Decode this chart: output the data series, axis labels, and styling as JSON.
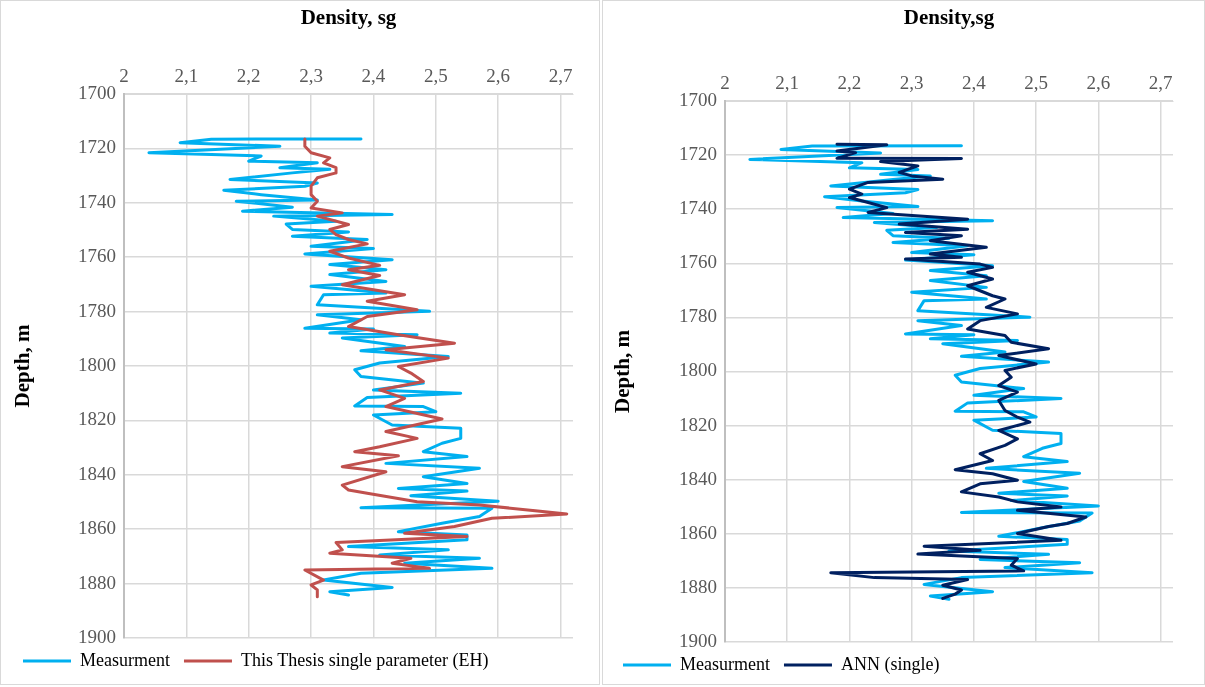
{
  "chart_data": [
    {
      "type": "line",
      "xlabel": "Density, sg",
      "ylabel": "Depth, m",
      "xlim": [
        2,
        2.72
      ],
      "ylim": [
        1900,
        1700
      ],
      "xticks": [
        {
          "value": 2,
          "label": "2"
        },
        {
          "value": 2.1,
          "label": "2,1"
        },
        {
          "value": 2.2,
          "label": "2,2"
        },
        {
          "value": 2.3,
          "label": "2,3"
        },
        {
          "value": 2.4,
          "label": "2,4"
        },
        {
          "value": 2.5,
          "label": "2,5"
        },
        {
          "value": 2.6,
          "label": "2,6"
        },
        {
          "value": 2.7,
          "label": "2,7"
        }
      ],
      "yticks": [
        1700,
        1720,
        1740,
        1760,
        1780,
        1800,
        1820,
        1840,
        1860,
        1880,
        1900
      ],
      "grid": true,
      "legend": "bottom",
      "marker": "none",
      "line_style": "solid",
      "series": [
        {
          "name": "Measurment",
          "color": "#00b0f0",
          "x": [
            2.38,
            2.14,
            2.09,
            2.25,
            2.04,
            2.22,
            2.2,
            2.31,
            2.25,
            2.33,
            2.27,
            2.17,
            2.31,
            2.29,
            2.16,
            2.22,
            2.31,
            2.18,
            2.27,
            2.19,
            2.43,
            2.24,
            2.34,
            2.26,
            2.27,
            2.36,
            2.27,
            2.39,
            2.3,
            2.4,
            2.29,
            2.43,
            2.33,
            2.42,
            2.33,
            2.42,
            2.3,
            2.42,
            2.32,
            2.31,
            2.49,
            2.31,
            2.38,
            2.29,
            2.4,
            2.33,
            2.47,
            2.35,
            2.45,
            2.38,
            2.52,
            2.41,
            2.37,
            2.38,
            2.48,
            2.4,
            2.54,
            2.39,
            2.37,
            2.48,
            2.5,
            2.4,
            2.43,
            2.54,
            2.54,
            2.51,
            2.48,
            2.55,
            2.42,
            2.57,
            2.48,
            2.55,
            2.44,
            2.55,
            2.46,
            2.6,
            2.38,
            2.59,
            2.57,
            2.51,
            2.44,
            2.55,
            2.55,
            2.36,
            2.52,
            2.41,
            2.57,
            2.45,
            2.59,
            2.38,
            2.32,
            2.43,
            2.33,
            2.36
          ],
          "values": [
            1716.5,
            1716.6,
            1717.9,
            1719.2,
            1721.6,
            1722.8,
            1724.7,
            1725.3,
            1727.1,
            1727.7,
            1729,
            1731.4,
            1732.7,
            1733.9,
            1735.4,
            1737,
            1739,
            1739.4,
            1741.6,
            1743.1,
            1744.3,
            1744.9,
            1746.8,
            1747.8,
            1749.8,
            1750.7,
            1752.3,
            1753.5,
            1756,
            1756.8,
            1758.8,
            1760.9,
            1762.7,
            1764.6,
            1766.4,
            1768.9,
            1770.7,
            1773.2,
            1773.8,
            1777.5,
            1779.9,
            1781.2,
            1783,
            1786.1,
            1786.4,
            1787.9,
            1788.5,
            1789.7,
            1792.8,
            1794.4,
            1796.5,
            1798.9,
            1801.4,
            1803.9,
            1806.3,
            1808.8,
            1810,
            1811.6,
            1814.7,
            1814.9,
            1816.8,
            1818,
            1821.7,
            1822.9,
            1826.6,
            1828.4,
            1831.5,
            1833.3,
            1835.8,
            1837.6,
            1840.7,
            1843.2,
            1845,
            1846,
            1847.7,
            1849.7,
            1852.1,
            1852.3,
            1855.3,
            1857.8,
            1860.9,
            1862.1,
            1863.9,
            1866.4,
            1867.6,
            1869.5,
            1870.7,
            1872.5,
            1874.4,
            1876.2,
            1878.7,
            1881.4,
            1883,
            1884.2
          ]
        },
        {
          "name": "This Thesis single parameter (EH)",
          "color": "#c0504d",
          "x": [
            2.29,
            2.29,
            2.3,
            2.33,
            2.32,
            2.34,
            2.34,
            2.31,
            2.3,
            2.3,
            2.31,
            2.3,
            2.35,
            2.31,
            2.36,
            2.33,
            2.34,
            2.36,
            2.39,
            2.33,
            2.36,
            2.41,
            2.36,
            2.41,
            2.35,
            2.45,
            2.39,
            2.47,
            2.39,
            2.36,
            2.44,
            2.53,
            2.42,
            2.52,
            2.44,
            2.46,
            2.48,
            2.41,
            2.45,
            2.42,
            2.51,
            2.42,
            2.47,
            2.41,
            2.37,
            2.44,
            2.35,
            2.42,
            2.35,
            2.36,
            2.39,
            2.47,
            2.57,
            2.71,
            2.59,
            2.53,
            2.45,
            2.55,
            2.34,
            2.35,
            2.33,
            2.46,
            2.43,
            2.49,
            2.29,
            2.32,
            2.3,
            2.31,
            2.31
          ],
          "values": [
            1716.5,
            1719.2,
            1721.6,
            1723.5,
            1725.3,
            1727.1,
            1729,
            1730.8,
            1733.9,
            1737,
            1739.4,
            1741.9,
            1743.7,
            1744.9,
            1748,
            1749.8,
            1751.7,
            1753.5,
            1755.1,
            1757.8,
            1760.3,
            1763,
            1764.6,
            1766.7,
            1770.1,
            1773.8,
            1776.2,
            1779.3,
            1781.8,
            1785.5,
            1788.5,
            1791.6,
            1794,
            1797.1,
            1800.2,
            1802.6,
            1805.7,
            1808.8,
            1811.9,
            1814.9,
            1819.5,
            1824.1,
            1826.6,
            1829.7,
            1831.5,
            1833,
            1837,
            1838.9,
            1843.8,
            1845.6,
            1846.8,
            1849.9,
            1851.1,
            1854.4,
            1856,
            1859,
            1861.5,
            1862.7,
            1864.9,
            1867.6,
            1868.8,
            1870.7,
            1872.5,
            1874.4,
            1875,
            1878.7,
            1880.5,
            1882.3,
            1884.8
          ]
        }
      ]
    },
    {
      "type": "line",
      "xlabel": "Density,sg",
      "ylabel": "Depth, m",
      "xlim": [
        2,
        2.72
      ],
      "ylim": [
        1900,
        1700
      ],
      "xticks": [
        {
          "value": 2,
          "label": "2"
        },
        {
          "value": 2.1,
          "label": "2,1"
        },
        {
          "value": 2.2,
          "label": "2,2"
        },
        {
          "value": 2.3,
          "label": "2,3"
        },
        {
          "value": 2.4,
          "label": "2,4"
        },
        {
          "value": 2.5,
          "label": "2,5"
        },
        {
          "value": 2.6,
          "label": "2,6"
        },
        {
          "value": 2.7,
          "label": "2,7"
        }
      ],
      "yticks": [
        1700,
        1720,
        1740,
        1760,
        1780,
        1800,
        1820,
        1840,
        1860,
        1880,
        1900
      ],
      "grid": true,
      "legend": "bottom",
      "marker": "none",
      "line_style": "solid",
      "series": [
        {
          "name": "Measurment",
          "color": "#00b0f0",
          "x": [
            2.38,
            2.14,
            2.09,
            2.25,
            2.04,
            2.22,
            2.2,
            2.31,
            2.25,
            2.33,
            2.27,
            2.17,
            2.31,
            2.29,
            2.16,
            2.22,
            2.31,
            2.18,
            2.27,
            2.19,
            2.43,
            2.24,
            2.34,
            2.26,
            2.27,
            2.36,
            2.27,
            2.39,
            2.3,
            2.4,
            2.29,
            2.43,
            2.33,
            2.42,
            2.33,
            2.42,
            2.3,
            2.42,
            2.32,
            2.31,
            2.49,
            2.31,
            2.38,
            2.29,
            2.4,
            2.33,
            2.47,
            2.35,
            2.45,
            2.38,
            2.52,
            2.41,
            2.37,
            2.38,
            2.48,
            2.4,
            2.54,
            2.39,
            2.37,
            2.48,
            2.5,
            2.4,
            2.43,
            2.54,
            2.54,
            2.51,
            2.48,
            2.55,
            2.42,
            2.57,
            2.48,
            2.55,
            2.44,
            2.55,
            2.46,
            2.6,
            2.38,
            2.59,
            2.57,
            2.51,
            2.44,
            2.55,
            2.55,
            2.36,
            2.52,
            2.41,
            2.57,
            2.45,
            2.59,
            2.38,
            2.32,
            2.43,
            2.33,
            2.36
          ],
          "values": [
            1716.5,
            1716.6,
            1717.9,
            1719.2,
            1721.6,
            1722.8,
            1724.7,
            1725.3,
            1727.1,
            1727.7,
            1729,
            1731.4,
            1732.7,
            1733.9,
            1735.4,
            1737,
            1739,
            1739.4,
            1741.6,
            1743.1,
            1744.3,
            1744.9,
            1746.8,
            1747.8,
            1749.8,
            1750.7,
            1752.3,
            1753.5,
            1756,
            1756.8,
            1758.8,
            1760.9,
            1762.7,
            1764.6,
            1766.4,
            1768.9,
            1770.7,
            1773.2,
            1773.8,
            1777.5,
            1779.9,
            1781.2,
            1783,
            1786.1,
            1786.4,
            1787.9,
            1788.5,
            1789.7,
            1792.8,
            1794.4,
            1796.5,
            1798.9,
            1801.4,
            1803.9,
            1806.3,
            1808.8,
            1810,
            1811.6,
            1814.7,
            1814.9,
            1816.8,
            1818,
            1821.7,
            1822.9,
            1826.6,
            1828.4,
            1831.5,
            1833.3,
            1835.8,
            1837.6,
            1840.7,
            1843.2,
            1845,
            1846,
            1847.7,
            1849.7,
            1852.1,
            1852.3,
            1855.3,
            1857.8,
            1860.9,
            1862.1,
            1863.9,
            1866.4,
            1867.6,
            1869.5,
            1870.7,
            1872.5,
            1874.4,
            1876.2,
            1878.7,
            1881.4,
            1883,
            1884.2
          ]
        },
        {
          "name": "ANN (single)",
          "color": "#002060",
          "x": [
            2.18,
            2.26,
            2.18,
            2.21,
            2.18,
            2.38,
            2.25,
            2.31,
            2.28,
            2.3,
            2.35,
            2.23,
            2.2,
            2.22,
            2.2,
            2.23,
            2.26,
            2.23,
            2.39,
            2.28,
            2.39,
            2.29,
            2.38,
            2.33,
            2.42,
            2.33,
            2.38,
            2.29,
            2.41,
            2.43,
            2.39,
            2.43,
            2.39,
            2.43,
            2.45,
            2.42,
            2.47,
            2.41,
            2.39,
            2.45,
            2.46,
            2.52,
            2.44,
            2.5,
            2.45,
            2.46,
            2.44,
            2.47,
            2.44,
            2.45,
            2.47,
            2.49,
            2.44,
            2.47,
            2.45,
            2.41,
            2.43,
            2.37,
            2.43,
            2.47,
            2.41,
            2.38,
            2.44,
            2.47,
            2.54,
            2.47,
            2.58,
            2.55,
            2.52,
            2.47,
            2.54,
            2.32,
            2.41,
            2.31,
            2.47,
            2.46,
            2.48,
            2.17,
            2.24,
            2.39,
            2.35,
            2.38,
            2.37,
            2.35
          ],
          "values": [
            1716,
            1716.2,
            1718.5,
            1719.1,
            1721.2,
            1721.3,
            1722.4,
            1724,
            1726.4,
            1727.7,
            1728.9,
            1730.1,
            1732.6,
            1734.4,
            1735.7,
            1737.5,
            1739.4,
            1741.2,
            1743.7,
            1745.5,
            1747.4,
            1748.6,
            1749.8,
            1751.7,
            1754.1,
            1756.6,
            1757.8,
            1758.4,
            1760.3,
            1761.5,
            1763.3,
            1765.8,
            1768.3,
            1772,
            1773.2,
            1776.3,
            1778.7,
            1781.2,
            1784.3,
            1786.7,
            1789.2,
            1791.6,
            1794.1,
            1797.2,
            1799.6,
            1802.1,
            1805.2,
            1807.6,
            1810.7,
            1814.4,
            1816.9,
            1818.7,
            1821.8,
            1824.9,
            1827.3,
            1830.4,
            1832.9,
            1836.3,
            1837.8,
            1840.2,
            1841.5,
            1844.5,
            1846.4,
            1848.2,
            1850.1,
            1851.3,
            1853.8,
            1856.2,
            1857.3,
            1859.9,
            1862.4,
            1864.6,
            1866.1,
            1867.5,
            1869.1,
            1871.6,
            1873.7,
            1874.4,
            1876.2,
            1876.9,
            1879,
            1880.8,
            1882.3,
            1883.9
          ]
        }
      ]
    }
  ]
}
